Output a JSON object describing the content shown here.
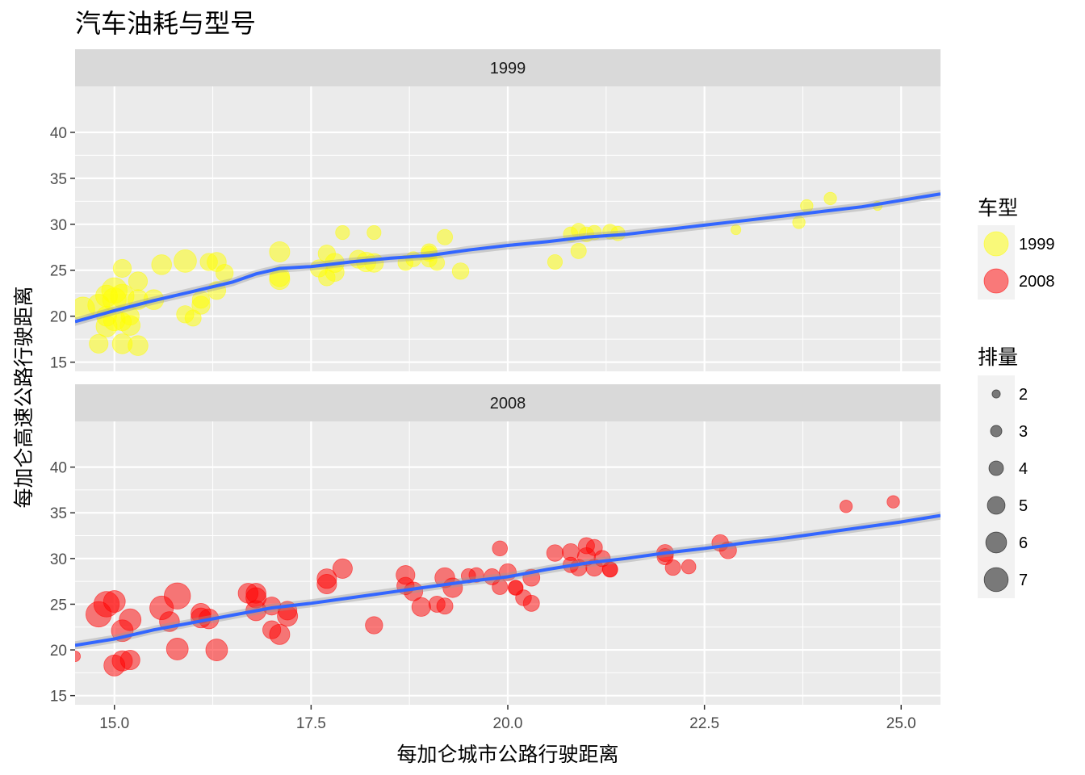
{
  "chart_data": {
    "type": "scatter",
    "title": "汽车油耗与型号",
    "xlabel": "每加仑城市公路行驶距离",
    "ylabel": "每加仑高速公路行驶距离",
    "xlim": [
      14.5,
      25.5
    ],
    "ylim": [
      14,
      45
    ],
    "x_ticks": [
      "15.0",
      "17.5",
      "20.0",
      "22.5",
      "25.0"
    ],
    "y_ticks": [
      "15",
      "20",
      "25",
      "30",
      "35",
      "40"
    ],
    "grid": true,
    "legend_position": "right",
    "color_legend": {
      "title": "车型",
      "entries": [
        {
          "label": "1999",
          "color": "#ffff00"
        },
        {
          "label": "2008",
          "color": "#ff0000"
        }
      ]
    },
    "size_legend": {
      "title": "排量",
      "entries": [
        {
          "label": "2",
          "value": 2
        },
        {
          "label": "3",
          "value": 3
        },
        {
          "label": "4",
          "value": 4
        },
        {
          "label": "5",
          "value": 5
        },
        {
          "label": "6",
          "value": 6
        },
        {
          "label": "7",
          "value": 7
        }
      ]
    },
    "panels": [
      {
        "label": "1999",
        "color": "#ffff00",
        "points": [
          [
            14.6,
            20.8,
            5.5
          ],
          [
            14.8,
            21.2,
            5.0
          ],
          [
            14.9,
            20.0,
            4.5
          ],
          [
            15.0,
            19.6,
            5.0
          ],
          [
            14.9,
            18.9,
            4.8
          ],
          [
            15.0,
            21.8,
            5.5
          ],
          [
            15.0,
            22.8,
            6.0
          ],
          [
            14.9,
            22.2,
            5.0
          ],
          [
            15.1,
            22.2,
            5.5
          ],
          [
            15.3,
            21.8,
            4.5
          ],
          [
            15.5,
            21.8,
            4.5
          ],
          [
            15.2,
            20.0,
            4.0
          ],
          [
            15.1,
            25.2,
            4.0
          ],
          [
            15.2,
            19.0,
            4.5
          ],
          [
            15.1,
            19.4,
            4.0
          ],
          [
            15.3,
            23.8,
            4.2
          ],
          [
            14.8,
            17.0,
            4.2
          ],
          [
            15.1,
            17.0,
            4.5
          ],
          [
            15.3,
            16.8,
            4.5
          ],
          [
            15.6,
            25.6,
            4.5
          ],
          [
            15.9,
            26.0,
            5.2
          ],
          [
            16.2,
            25.9,
            3.8
          ],
          [
            16.3,
            25.9,
            4.3
          ],
          [
            16.3,
            22.8,
            4.0
          ],
          [
            16.4,
            24.7,
            3.8
          ],
          [
            15.9,
            20.2,
            3.8
          ],
          [
            16.0,
            19.8,
            3.5
          ],
          [
            16.1,
            21.2,
            4.0
          ],
          [
            16.1,
            21.8,
            3.8
          ],
          [
            17.1,
            27.0,
            4.6
          ],
          [
            17.1,
            24.0,
            4.6
          ],
          [
            17.1,
            24.3,
            4.5
          ],
          [
            17.7,
            26.8,
            3.8
          ],
          [
            17.6,
            25.2,
            3.8
          ],
          [
            17.8,
            24.8,
            4.2
          ],
          [
            17.8,
            25.8,
            4.3
          ],
          [
            17.7,
            24.2,
            3.6
          ],
          [
            18.1,
            26.2,
            4.0
          ],
          [
            18.2,
            25.9,
            4.4
          ],
          [
            18.3,
            25.8,
            4.2
          ],
          [
            17.9,
            29.1,
            2.9
          ],
          [
            18.3,
            29.1,
            2.9
          ],
          [
            18.7,
            25.8,
            3.2
          ],
          [
            18.8,
            26.2,
            3.2
          ],
          [
            19.0,
            27.0,
            3.5
          ],
          [
            19.0,
            26.8,
            3.3
          ],
          [
            19.0,
            26.2,
            3.4
          ],
          [
            19.1,
            25.8,
            3.2
          ],
          [
            19.2,
            28.6,
            3.3
          ],
          [
            19.4,
            24.9,
            3.6
          ],
          [
            20.6,
            25.9,
            3.1
          ],
          [
            20.8,
            28.9,
            3.1
          ],
          [
            20.9,
            29.3,
            3.1
          ],
          [
            20.9,
            27.1,
            3.3
          ],
          [
            21.0,
            28.9,
            3.1
          ],
          [
            21.1,
            29.1,
            3.0
          ],
          [
            21.3,
            29.2,
            3.1
          ],
          [
            21.4,
            29.0,
            3.0
          ],
          [
            22.9,
            29.4,
            1.8
          ],
          [
            23.7,
            30.2,
            2.5
          ],
          [
            23.8,
            32.0,
            2.5
          ],
          [
            24.1,
            32.8,
            2.5
          ],
          [
            24.7,
            32.0,
            1.6
          ]
        ],
        "smooth": [
          [
            14.5,
            19.4
          ],
          [
            15.0,
            20.6
          ],
          [
            15.5,
            21.7
          ],
          [
            16.0,
            22.7
          ],
          [
            16.5,
            23.7
          ],
          [
            16.8,
            24.6
          ],
          [
            17.1,
            25.2
          ],
          [
            17.5,
            25.4
          ],
          [
            18.0,
            25.9
          ],
          [
            18.5,
            26.3
          ],
          [
            19.0,
            26.6
          ],
          [
            19.5,
            27.2
          ],
          [
            20.0,
            27.7
          ],
          [
            20.5,
            28.1
          ],
          [
            21.0,
            28.6
          ],
          [
            21.5,
            28.9
          ],
          [
            22.0,
            29.4
          ],
          [
            22.5,
            29.9
          ],
          [
            23.0,
            30.4
          ],
          [
            23.5,
            30.9
          ],
          [
            24.0,
            31.4
          ],
          [
            24.5,
            31.9
          ],
          [
            25.0,
            32.6
          ],
          [
            25.5,
            33.3
          ]
        ]
      },
      {
        "label": "2008",
        "color": "#ff0000",
        "points": [
          [
            14.5,
            19.3,
            2.0
          ],
          [
            14.8,
            23.9,
            6.0
          ],
          [
            14.9,
            25.0,
            6.0
          ],
          [
            15.0,
            25.3,
            5.0
          ],
          [
            15.1,
            22.1,
            5.0
          ],
          [
            15.0,
            18.3,
            4.8
          ],
          [
            15.1,
            18.8,
            4.6
          ],
          [
            15.2,
            18.9,
            4.4
          ],
          [
            15.2,
            23.3,
            5.0
          ],
          [
            15.6,
            24.6,
            5.5
          ],
          [
            15.7,
            23.1,
            4.5
          ],
          [
            15.8,
            20.1,
            5.0
          ],
          [
            15.8,
            25.9,
            6.2
          ],
          [
            16.1,
            24.0,
            4.5
          ],
          [
            16.1,
            23.5,
            4.5
          ],
          [
            16.2,
            23.4,
            4.5
          ],
          [
            16.3,
            20.0,
            5.0
          ],
          [
            16.7,
            26.2,
            4.5
          ],
          [
            16.8,
            26.2,
            4.5
          ],
          [
            16.8,
            24.3,
            4.6
          ],
          [
            16.8,
            25.7,
            4.6
          ],
          [
            17.0,
            22.2,
            4.0
          ],
          [
            17.0,
            24.8,
            4.0
          ],
          [
            17.1,
            21.7,
            4.6
          ],
          [
            17.2,
            23.7,
            4.6
          ],
          [
            17.2,
            24.3,
            4.2
          ],
          [
            17.7,
            27.2,
            4.4
          ],
          [
            17.7,
            27.8,
            4.4
          ],
          [
            17.9,
            28.9,
            4.4
          ],
          [
            18.3,
            22.7,
            3.8
          ],
          [
            18.7,
            27.0,
            3.8
          ],
          [
            18.7,
            28.2,
            4.2
          ],
          [
            18.8,
            26.4,
            4.2
          ],
          [
            18.9,
            24.7,
            4.2
          ],
          [
            19.1,
            25.0,
            3.5
          ],
          [
            19.2,
            24.8,
            3.5
          ],
          [
            19.2,
            27.9,
            4.5
          ],
          [
            19.3,
            26.8,
            4.4
          ],
          [
            19.5,
            28.1,
            3.0
          ],
          [
            19.6,
            28.2,
            3.1
          ],
          [
            19.9,
            26.9,
            3.3
          ],
          [
            19.8,
            28.0,
            3.5
          ],
          [
            19.9,
            31.1,
            3.2
          ],
          [
            20.0,
            28.5,
            3.7
          ],
          [
            20.1,
            26.8,
            3.0
          ],
          [
            20.1,
            26.8,
            3.2
          ],
          [
            20.2,
            25.7,
            3.4
          ],
          [
            20.3,
            25.1,
            3.5
          ],
          [
            20.3,
            27.9,
            3.7
          ],
          [
            20.6,
            30.6,
            3.6
          ],
          [
            20.8,
            30.7,
            3.7
          ],
          [
            20.8,
            29.3,
            3.3
          ],
          [
            20.9,
            29.0,
            3.6
          ],
          [
            21.0,
            31.4,
            3.5
          ],
          [
            21.1,
            31.2,
            3.5
          ],
          [
            21.0,
            30.2,
            4.0
          ],
          [
            21.1,
            29.0,
            3.7
          ],
          [
            21.2,
            30.0,
            3.5
          ],
          [
            21.3,
            28.8,
            3.3
          ],
          [
            21.3,
            28.8,
            3.1
          ],
          [
            22.0,
            30.2,
            3.5
          ],
          [
            22.0,
            30.6,
            3.7
          ],
          [
            22.1,
            29.0,
            3.3
          ],
          [
            22.3,
            29.1,
            3.0
          ],
          [
            22.7,
            31.7,
            3.6
          ],
          [
            22.8,
            30.9,
            3.7
          ],
          [
            24.3,
            35.7,
            2.5
          ],
          [
            24.9,
            36.2,
            2.5
          ]
        ],
        "smooth": [
          [
            14.5,
            20.5
          ],
          [
            15.0,
            21.2
          ],
          [
            15.5,
            22.2
          ],
          [
            16.0,
            23.0
          ],
          [
            16.5,
            23.8
          ],
          [
            17.0,
            24.6
          ],
          [
            17.5,
            25.1
          ],
          [
            18.0,
            25.7
          ],
          [
            18.5,
            26.3
          ],
          [
            19.0,
            26.9
          ],
          [
            19.5,
            27.5
          ],
          [
            20.0,
            28.0
          ],
          [
            20.5,
            28.8
          ],
          [
            21.0,
            29.5
          ],
          [
            21.5,
            30.0
          ],
          [
            22.0,
            30.6
          ],
          [
            22.5,
            31.1
          ],
          [
            23.0,
            31.7
          ],
          [
            23.5,
            32.2
          ],
          [
            24.0,
            32.8
          ],
          [
            24.5,
            33.4
          ],
          [
            25.0,
            34.0
          ],
          [
            25.5,
            34.7
          ]
        ]
      }
    ]
  }
}
